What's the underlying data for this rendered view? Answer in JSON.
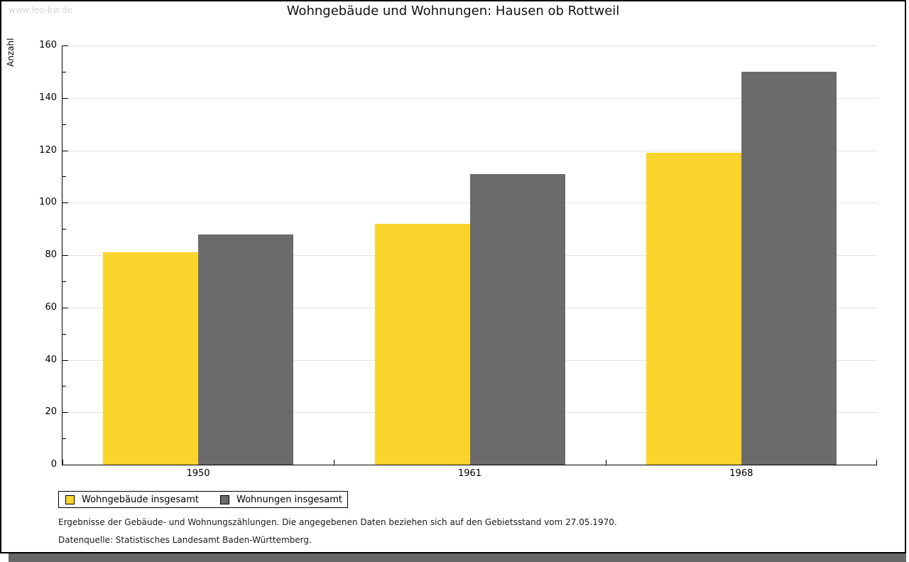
{
  "window": {
    "watermark": "www.leo-bw.de"
  },
  "chart_data": {
    "type": "bar",
    "title": "Wohngebäude und Wohnungen: Hausen ob Rottweil",
    "ylabel": "Anzahl",
    "xlabel": "",
    "categories": [
      "1950",
      "1961",
      "1968"
    ],
    "series": [
      {
        "name": "Wohngebäude insgesamt",
        "color": "#fcd42e",
        "values": [
          81,
          92,
          119
        ]
      },
      {
        "name": "Wohnungen insgesamt",
        "color": "#6b6b6b",
        "values": [
          88,
          111,
          150
        ]
      }
    ],
    "ylim": [
      0,
      160
    ],
    "ytick_step": 20,
    "yminor_step": 10,
    "grid": true,
    "gridline_color": "#e3e3e3",
    "legend_position": "bottom-left"
  },
  "footnotes": {
    "line1": "Ergebnisse der Gebäude- und Wohnungszählungen. Die angegebenen Daten beziehen sich auf den Gebietsstand vom 27.05.1970.",
    "line2": "Datenquelle: Statistisches Landesamt Baden-Württemberg."
  }
}
